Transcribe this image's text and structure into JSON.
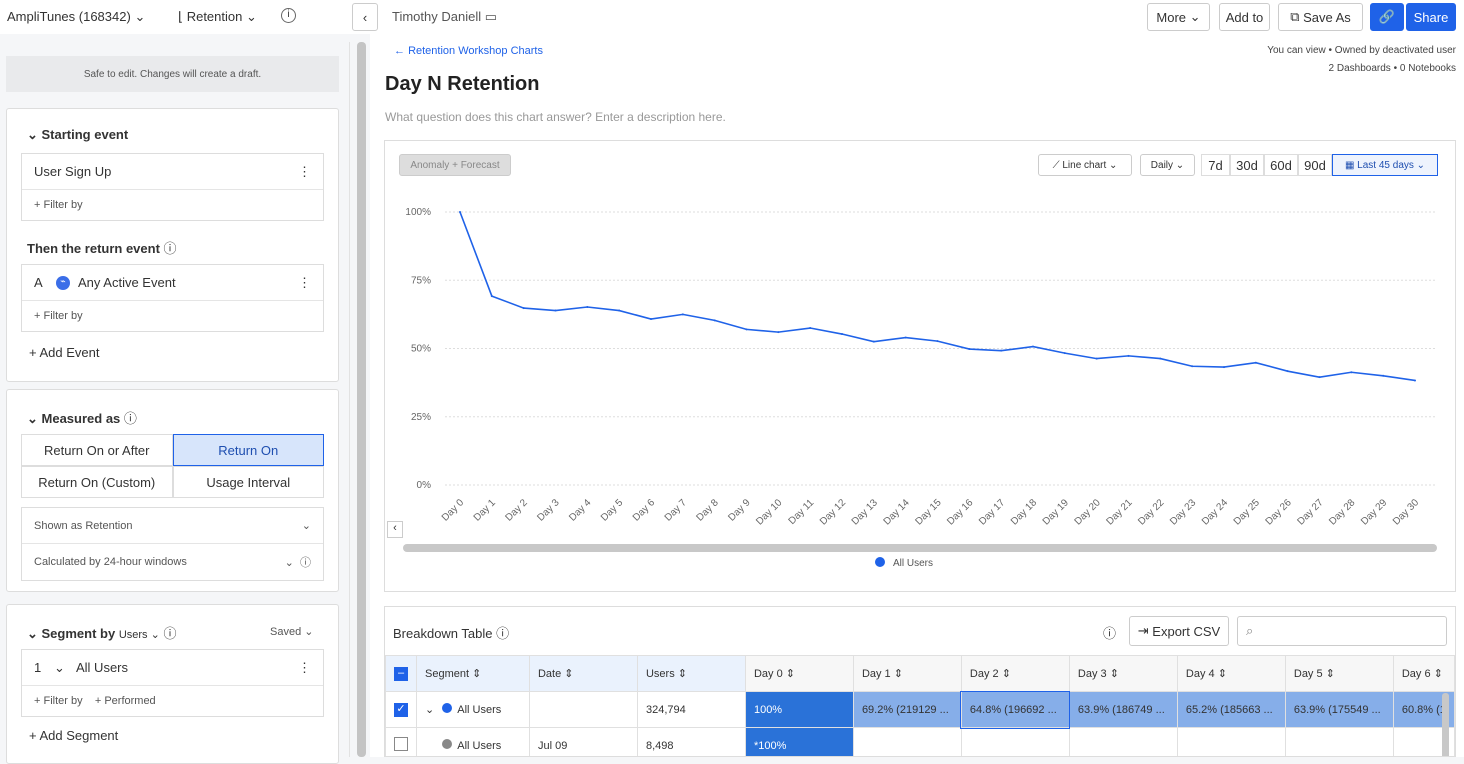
{
  "topbar": {
    "project": "AmpliTunes (168342)",
    "chart_type": "Retention",
    "owner": "Timothy Daniell",
    "more": "More",
    "add_to": "Add to",
    "save_as": "Save As",
    "share": "Share"
  },
  "left": {
    "safe_note": "Safe to edit. Changes will create a draft.",
    "starting_event_title": "Starting event",
    "starting_event": "User Sign Up",
    "filter_by": "+ Filter by",
    "return_event_title": "Then the return event",
    "return_letter": "A",
    "return_event": "Any Active Event",
    "add_event": "+ Add Event",
    "measured_title": "Measured as",
    "measure_options": [
      "Return On or After",
      "Return On",
      "Return On (Custom)",
      "Usage Interval"
    ],
    "measure_selected": "Return On",
    "shown_as": "Shown as Retention",
    "calculated_by": "Calculated by 24-hour windows",
    "segment_title": "Segment by",
    "segment_unit": "Users",
    "saved": "Saved",
    "segment_index": "1",
    "segment_name": "All Users",
    "performed": "+ Performed",
    "add_segment": "+ Add Segment"
  },
  "header": {
    "back_link": "Retention Workshop Charts",
    "title": "Day N Retention",
    "description_placeholder": "What question does this chart answer? Enter a description here.",
    "permissions": "You can view • Owned by deactivated user",
    "counts": "2 Dashboards • 0 Notebooks"
  },
  "controls": {
    "anomaly": "Anomaly + Forecast",
    "chart_kind": "Line chart",
    "interval": "Daily",
    "ranges": [
      "7d",
      "30d",
      "60d",
      "90d"
    ],
    "range_selected": "Last 45 days"
  },
  "chart_data": {
    "type": "line",
    "categories": [
      "Day 0",
      "Day 1",
      "Day 2",
      "Day 3",
      "Day 4",
      "Day 5",
      "Day 6",
      "Day 7",
      "Day 8",
      "Day 9",
      "Day 10",
      "Day 11",
      "Day 12",
      "Day 13",
      "Day 14",
      "Day 15",
      "Day 16",
      "Day 17",
      "Day 18",
      "Day 19",
      "Day 20",
      "Day 21",
      "Day 22",
      "Day 23",
      "Day 24",
      "Day 25",
      "Day 26",
      "Day 27",
      "Day 28",
      "Day 29",
      "Day 30"
    ],
    "series": [
      {
        "name": "All Users",
        "values": [
          100,
          69.2,
          64.8,
          63.9,
          65.2,
          63.9,
          60.8,
          62.5,
          60.3,
          57,
          56,
          57.5,
          55.3,
          52.5,
          54,
          52.7,
          49.8,
          49.2,
          50.7,
          48.3,
          46.3,
          47.3,
          46.3,
          43.5,
          43.2,
          44.8,
          41.7,
          39.5,
          41.3,
          40,
          38.3
        ]
      }
    ],
    "yticks": [
      "0%",
      "25%",
      "50%",
      "75%",
      "100%"
    ],
    "ylim": [
      0,
      100
    ],
    "grid": true,
    "legend": "bottom",
    "color": "#1f62e8"
  },
  "table": {
    "title": "Breakdown Table",
    "export": "Export CSV",
    "columns": [
      "Segment",
      "Date",
      "Users",
      "Day 0",
      "Day 1",
      "Day 2",
      "Day 3",
      "Day 4",
      "Day 5",
      "Day 6"
    ],
    "rows": [
      [
        "All Users",
        "",
        "324,794",
        "100%",
        "69.2% (219129 ...",
        "64.8% (196692 ...",
        "63.9% (186749 ...",
        "65.2% (185663 ...",
        "63.9% (175549 ...",
        "60.8% (1"
      ],
      [
        "All Users",
        "Jul 09",
        "8,498",
        "*100%",
        "",
        "",
        "",
        "",
        "",
        ""
      ]
    ]
  }
}
